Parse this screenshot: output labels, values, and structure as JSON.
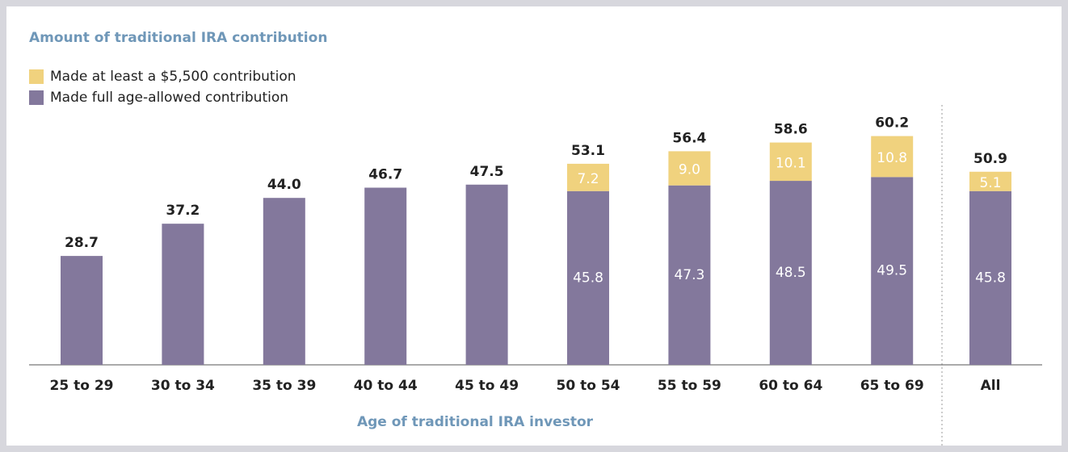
{
  "chart_data": {
    "type": "stacked-bar",
    "title": "Amount of traditional IRA contribution",
    "x_label": "Age of traditional IRA investor",
    "categories": [
      "25 to 29",
      "30 to 34",
      "35 to 39",
      "40 to 44",
      "45 to 49",
      "50 to 54",
      "55 to 59",
      "60 to 64",
      "65 to 69",
      "All"
    ],
    "series": [
      {
        "name": "Made full age-allowed contribution",
        "color": "#83789c",
        "values": [
          28.7,
          37.2,
          44.0,
          46.7,
          47.5,
          45.8,
          47.3,
          48.5,
          49.5,
          45.8
        ],
        "value_labels": [
          "28.7",
          "37.2",
          "44.0",
          "46.7",
          "47.5",
          "45.8",
          "47.3",
          "48.5",
          "49.5",
          "45.8"
        ]
      },
      {
        "name": "Made at least a $5,500 contribution",
        "color": "#f0d27e",
        "values": [
          null,
          null,
          null,
          null,
          null,
          7.2,
          9.0,
          10.1,
          10.8,
          5.1
        ],
        "value_labels": [
          null,
          null,
          null,
          null,
          null,
          "7.2",
          "9.0",
          "10.1",
          "10.8",
          "5.1"
        ]
      }
    ],
    "totals": [
      null,
      null,
      null,
      null,
      null,
      53.1,
      56.4,
      58.6,
      60.2,
      50.9
    ]
  }
}
